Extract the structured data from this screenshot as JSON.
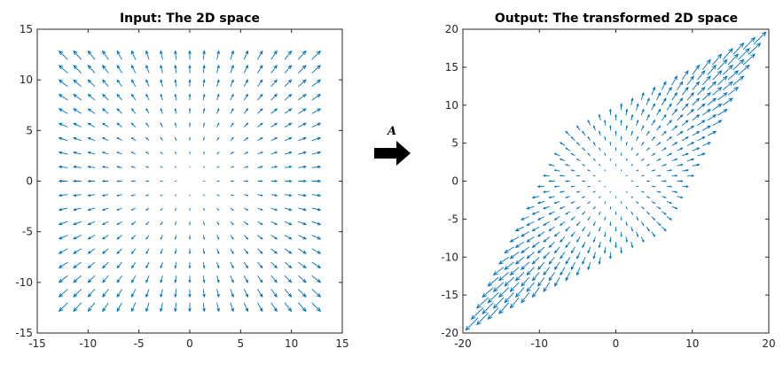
{
  "arrow": {
    "label": "A"
  },
  "chart_data": [
    {
      "type": "quiver",
      "title": "Input: The 2D space",
      "xlim": [
        -15,
        15
      ],
      "ylim": [
        -15,
        15
      ],
      "xticks": [
        -15,
        -10,
        -5,
        0,
        5,
        10,
        15
      ],
      "yticks": [
        -15,
        -10,
        -5,
        0,
        5,
        10,
        15
      ],
      "grid": false,
      "color": "#0072BD",
      "field": {
        "x_range": [
          -12,
          12
        ],
        "y_range": [
          -12,
          12
        ],
        "steps": 19,
        "vector": "radial"
      }
    },
    {
      "type": "quiver",
      "title": "Output: The transformed 2D space",
      "xlim": [
        -20,
        20
      ],
      "ylim": [
        -20,
        20
      ],
      "xticks": [
        -20,
        -10,
        0,
        10,
        20
      ],
      "yticks": [
        -20,
        -15,
        -10,
        -5,
        0,
        5,
        10,
        15,
        20
      ],
      "grid": false,
      "color": "#0072BD",
      "matrix": [
        [
          1,
          0.5
        ],
        [
          0.5,
          1
        ]
      ]
    }
  ]
}
